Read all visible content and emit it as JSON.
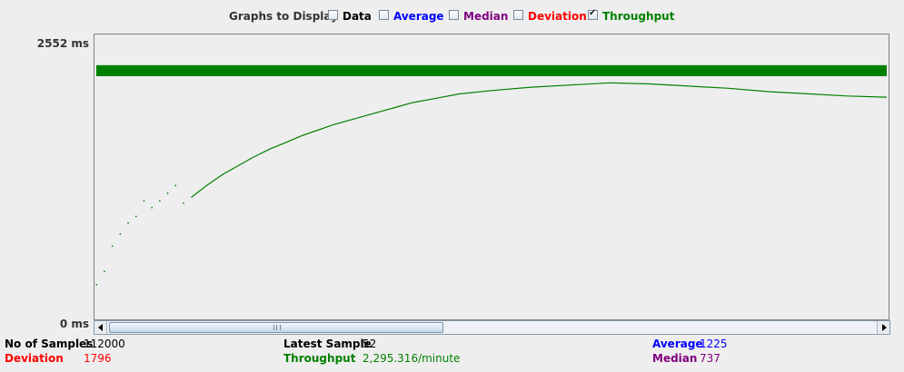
{
  "legend": {
    "title": "Graphs to Display",
    "items": [
      {
        "label": "Data",
        "checked": false,
        "color": "#000000"
      },
      {
        "label": "Average",
        "checked": false,
        "color": "#0000ff"
      },
      {
        "label": "Median",
        "checked": false,
        "color": "#800080"
      },
      {
        "label": "Deviation",
        "checked": false,
        "color": "#ff0000"
      },
      {
        "label": "Throughput",
        "checked": true,
        "color": "#008000"
      }
    ]
  },
  "axis": {
    "y_max_label": "2552 ms",
    "y_min_label": "0 ms"
  },
  "chart_data": {
    "type": "line",
    "ylim": [
      0,
      2552
    ],
    "series": [
      {
        "name": "Throughput",
        "color": "#008000",
        "x": [
          0,
          1,
          2,
          3,
          4,
          5,
          6,
          7,
          8,
          9,
          10,
          11,
          12,
          14,
          16,
          18,
          20,
          22,
          24,
          26,
          28,
          30,
          32,
          34,
          36,
          38,
          40,
          43,
          46,
          50,
          55,
          60,
          65,
          70,
          75,
          80,
          85,
          90,
          95,
          100
        ],
        "values": [
          300,
          420,
          650,
          760,
          860,
          920,
          1060,
          1000,
          1060,
          1130,
          1200,
          1040,
          1090,
          1200,
          1300,
          1380,
          1460,
          1530,
          1590,
          1650,
          1700,
          1750,
          1790,
          1830,
          1870,
          1910,
          1950,
          1990,
          2030,
          2060,
          2090,
          2110,
          2130,
          2120,
          2100,
          2080,
          2050,
          2030,
          2010,
          2000
        ]
      }
    ],
    "band": {
      "name": "Throughput band",
      "y_low": 2190,
      "y_high": 2290
    }
  },
  "stats": {
    "samples_label": "No of Samples",
    "samples_value": "112000",
    "latest_label": "Latest Sample",
    "latest_value": "52",
    "average_label": "Average",
    "average_value": "1225",
    "deviation_label": "Deviation",
    "deviation_value": "1796",
    "throughput_label": "Throughput",
    "throughput_value": "2,295.316/minute",
    "median_label": "Median",
    "median_value": "737"
  }
}
